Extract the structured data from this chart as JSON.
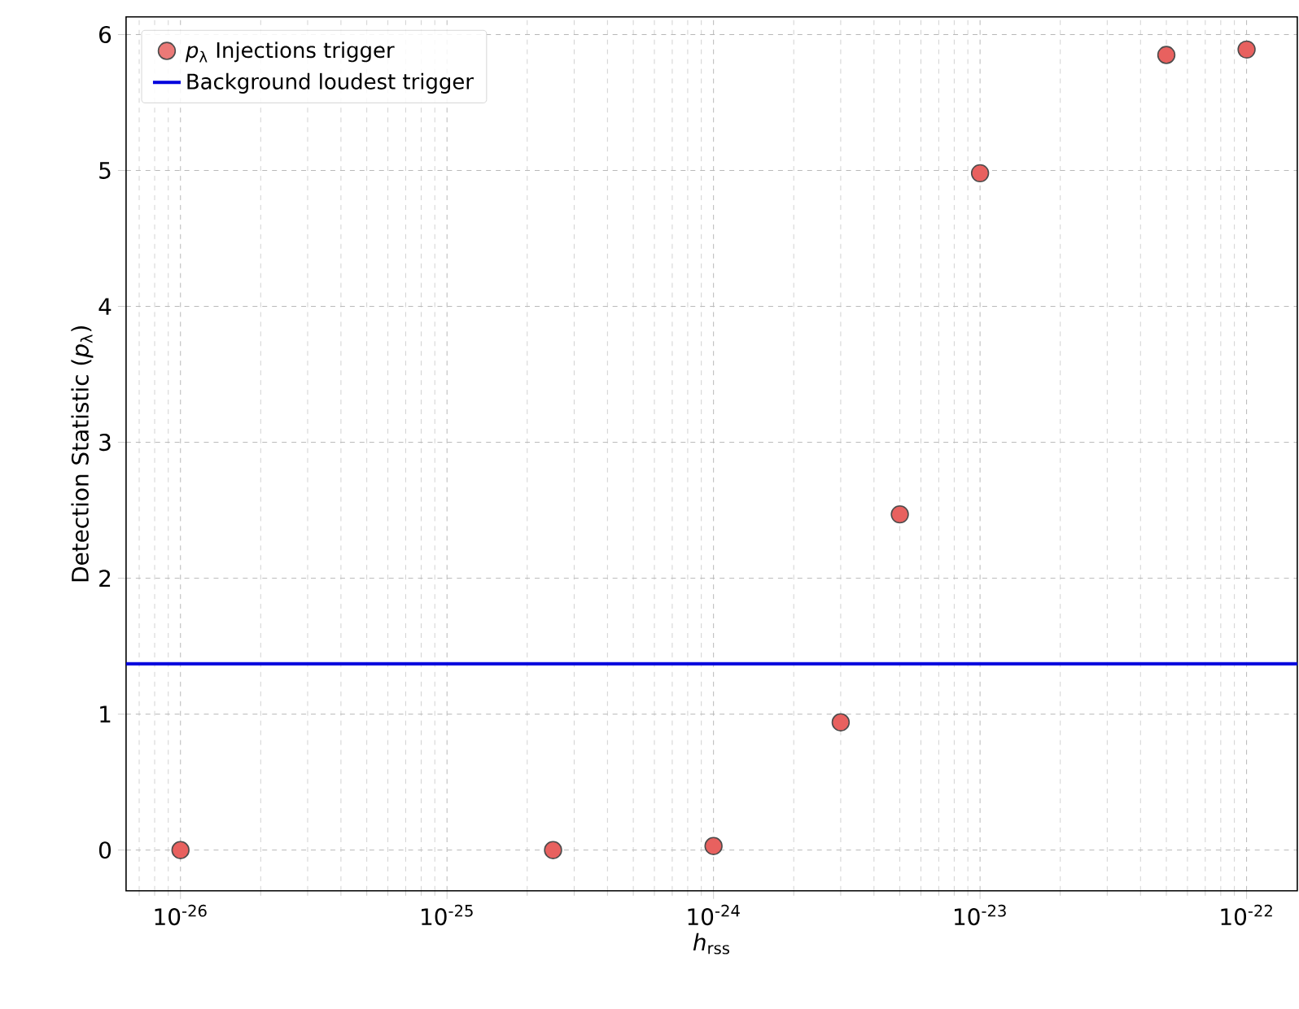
{
  "chart_data": {
    "type": "scatter",
    "xlabel": "*h*$_{rss}$",
    "ylabel": "Detection Statistic (*p*$_{λ}$)",
    "x": [
      1e-26,
      2.5e-25,
      1e-24,
      3e-24,
      5e-24,
      1e-23,
      5e-23,
      1e-22
    ],
    "series": [
      {
        "name": "*p*$_{λ}$ Injections trigger",
        "color": "#e8615f",
        "values": [
          0,
          0,
          0.03,
          0.94,
          2.47,
          4.98,
          5.85,
          5.89
        ]
      }
    ],
    "ref_lines": [
      {
        "axis": "y",
        "value": 1.37,
        "label": "Background loudest trigger",
        "color": "#0000dd",
        "line_style": "solid"
      }
    ],
    "log": "x",
    "xlim": [
      6.25e-27,
      1.55e-22
    ],
    "ylim": [
      -0.3,
      6.13
    ],
    "xticks": [
      {
        "value": 1e-26,
        "label": "10$^{-26}$"
      },
      {
        "value": 1e-25,
        "label": "10$^{-25}$"
      },
      {
        "value": 1e-24,
        "label": "10$^{-24}$"
      },
      {
        "value": 1e-23,
        "label": "10$^{-23}$"
      },
      {
        "value": 1e-22,
        "label": "10$^{-22}$"
      }
    ],
    "yticks": [
      0,
      1,
      2,
      3,
      4,
      5,
      6
    ],
    "grid": true,
    "legend": "top left"
  }
}
